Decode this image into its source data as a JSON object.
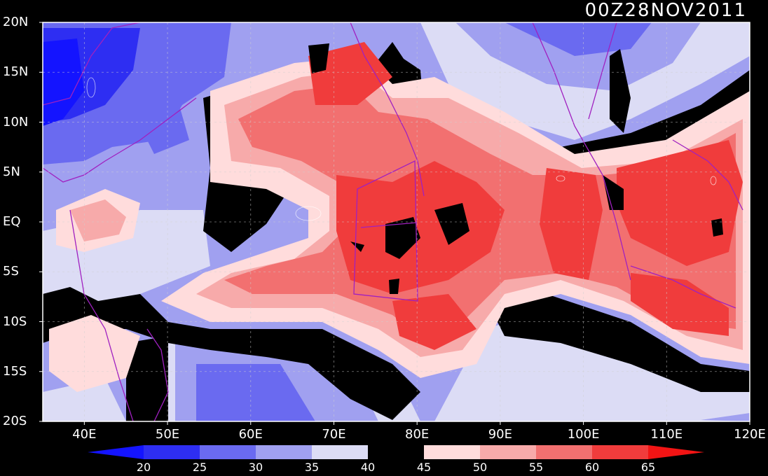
{
  "title": "00Z28NOV2011",
  "map": {
    "lon_range": [
      35,
      120
    ],
    "lat_range": [
      -20,
      20
    ],
    "lat_labels": [
      {
        "lat": 20,
        "text": "20N"
      },
      {
        "lat": 15,
        "text": "15N"
      },
      {
        "lat": 10,
        "text": "10N"
      },
      {
        "lat": 5,
        "text": "5N"
      },
      {
        "lat": 0,
        "text": "EQ"
      },
      {
        "lat": -5,
        "text": "5S"
      },
      {
        "lat": -10,
        "text": "10S"
      },
      {
        "lat": -15,
        "text": "15S"
      },
      {
        "lat": -20,
        "text": "20S"
      }
    ],
    "lon_labels": [
      {
        "lon": 40,
        "text": "40E"
      },
      {
        "lon": 50,
        "text": "50E"
      },
      {
        "lon": 60,
        "text": "60E"
      },
      {
        "lon": 70,
        "text": "70E"
      },
      {
        "lon": 80,
        "text": "80E"
      },
      {
        "lon": 90,
        "text": "90E"
      },
      {
        "lon": 100,
        "text": "100E"
      },
      {
        "lon": 110,
        "text": "110E"
      },
      {
        "lon": 120,
        "text": "120E"
      }
    ],
    "gridlines": true
  },
  "colorbar": {
    "levels": [
      "20",
      "25",
      "30",
      "35",
      "40",
      "45",
      "50",
      "55",
      "60",
      "65"
    ],
    "colors": [
      "#1414ff",
      "#2e2ef2",
      "#6a6af0",
      "#a0a0f0",
      "#dcdcf5",
      "#000000",
      "#ffdcdc",
      "#f7aaaa",
      "#f27070",
      "#f03c3c",
      "#f21414"
    ]
  },
  "colors": {
    "background": "#000000",
    "frame": "#ffffff",
    "coastline": "#a020c0"
  }
}
